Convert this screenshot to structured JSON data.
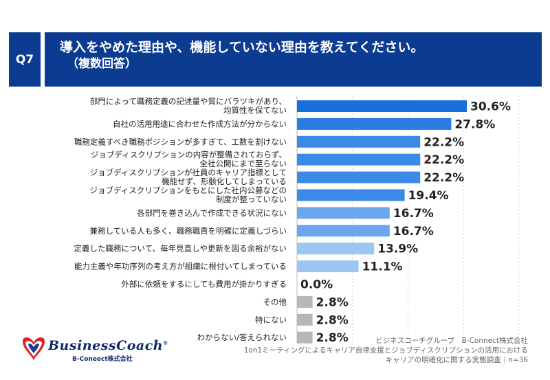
{
  "question": {
    "badge": "Q7",
    "title_line1": "導入をやめた理由や、機能していない理由を教えてください。",
    "title_line2": "（複数回答）"
  },
  "chart_data": {
    "type": "bar",
    "orientation": "horizontal",
    "title": "導入をやめた理由や、機能していない理由を教えてください。（複数回答）",
    "categories": [
      [
        "部門によって職務定義の記述量や質にバラツキがあり、",
        "均質性を保てない"
      ],
      [
        "自社の活用用途に合わせた作成方法が分からない"
      ],
      [
        "職務定義すべき職務ポジションが多すぎて、工数を割けない"
      ],
      [
        "ジョブディスクリプションの内容が整備されておらず、",
        "全社公開にまで至らない"
      ],
      [
        "ジョブディスクリプションが社員のキャリア指標として",
        "機能せず、形骸化してしまっている"
      ],
      [
        "ジョブディスクリプションをもとにした社内公募などの",
        "制度が整っていない"
      ],
      [
        "各部門を巻き込んで作成できる状況にない"
      ],
      [
        "兼務している人も多く、職務職責を明確に定義しづらい"
      ],
      [
        "定義した職務について、毎年見直しや更新を図る余裕がない"
      ],
      [
        "能力主義や年功序列の考え方が組織に根付いてしまっている"
      ],
      [
        "外部に依頼をするにしても費用が掛かりすぎる"
      ],
      [
        "その他"
      ],
      [
        "特にない"
      ],
      [
        "わからない/答えられない"
      ]
    ],
    "values": [
      30.6,
      27.8,
      22.2,
      22.2,
      22.2,
      19.4,
      16.7,
      16.7,
      13.9,
      11.1,
      0.0,
      2.8,
      2.8,
      2.8
    ],
    "value_labels": [
      "30.6%",
      "27.8%",
      "22.2%",
      "22.2%",
      "22.2%",
      "19.4%",
      "16.7%",
      "16.7%",
      "13.9%",
      "11.1%",
      "0.0%",
      "2.8%",
      "2.8%",
      "2.8%"
    ],
    "xlim": [
      0,
      35
    ],
    "grid": "vertical-dotted",
    "colors": {
      "dark": "#1a6fe0",
      "mid": "#3a8ae6",
      "light": "#6aa7ee",
      "lighter": "#9cc5f3",
      "gray": "#b7b7b7"
    }
  },
  "logo": {
    "name": "BusinessCoach",
    "sub": "B-Coneect株式会社"
  },
  "source": {
    "line1": "ビジネスコーチグループ　B-Connect株式会社",
    "line2": "1on1ミーティングによるキャリア自律支援とジョブディスクリプションの活用における",
    "line3": "キャリアの明確化に関する実態調査｜n=36"
  }
}
